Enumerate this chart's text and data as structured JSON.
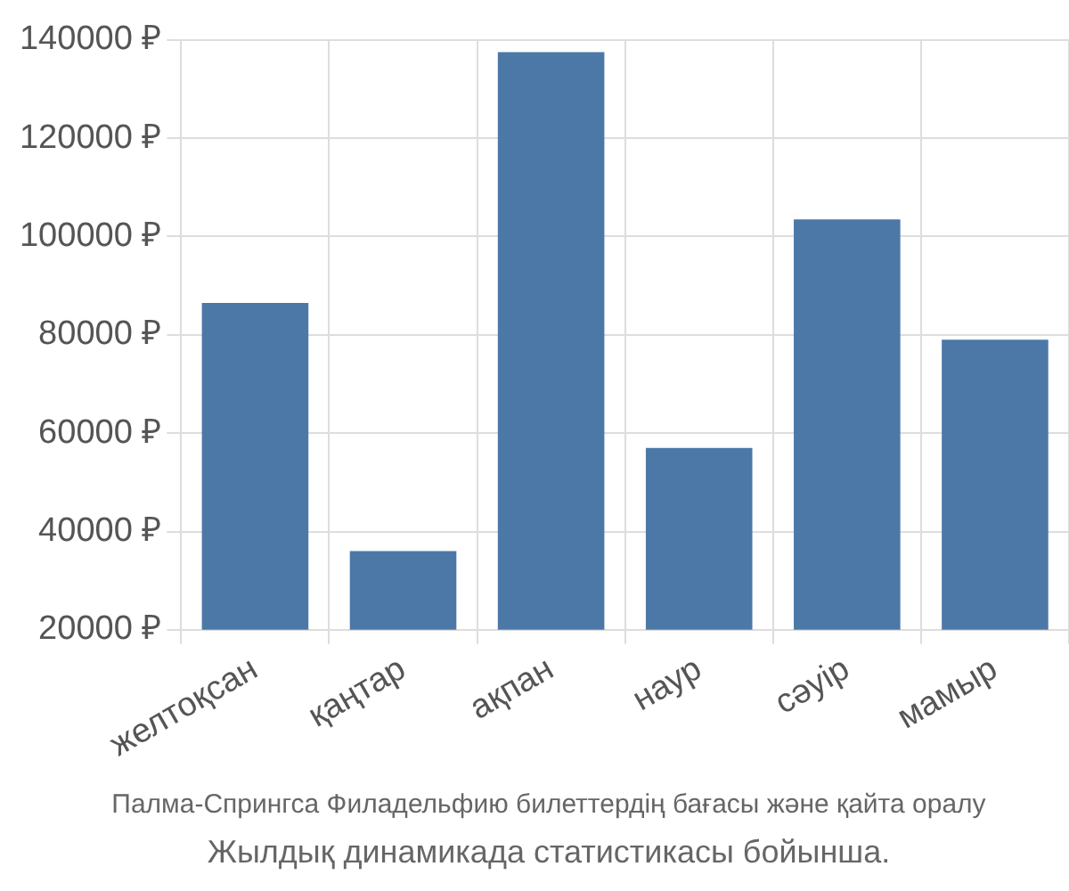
{
  "chart_data": {
    "type": "bar",
    "categories": [
      "желтоқсан",
      "қаңтар",
      "ақпан",
      "наур",
      "сәуір",
      "мамыр"
    ],
    "values": [
      86500,
      36000,
      137500,
      57000,
      103500,
      79000
    ],
    "color": "#4c78a8",
    "ylim": [
      20000,
      140000
    ],
    "yticks": [
      {
        "value": 20000,
        "label": "20000 ₽"
      },
      {
        "value": 40000,
        "label": "40000 ₽"
      },
      {
        "value": 60000,
        "label": "60000 ₽"
      },
      {
        "value": 80000,
        "label": "80000 ₽"
      },
      {
        "value": 100000,
        "label": "100000 ₽"
      },
      {
        "value": 120000,
        "label": "120000 ₽"
      },
      {
        "value": 140000,
        "label": "140000 ₽"
      }
    ],
    "grid": true,
    "annotations": [
      "Палма-Спрингса Филадельфию билеттердің бағасы және қайта оралу",
      "Жылдық динамикада статистикасы бойынша."
    ]
  }
}
